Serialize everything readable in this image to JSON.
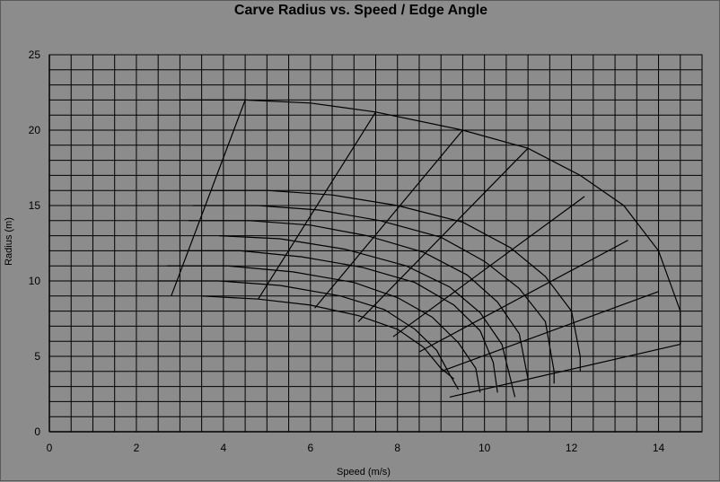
{
  "chart_data": {
    "type": "line",
    "title": "Carve Radius vs. Speed / Edge Angle",
    "xlabel": "Speed (m/s)",
    "ylabel": "Radius (m)",
    "xlim": [
      0,
      15
    ],
    "ylim": [
      0,
      25
    ],
    "x_ticks": [
      0,
      2,
      4,
      6,
      8,
      10,
      12,
      14
    ],
    "y_ticks": [
      0,
      5,
      10,
      15,
      20,
      25
    ],
    "grid": true,
    "legend": "none",
    "series": [
      {
        "points": [
          [
            3.0,
            22.0
          ],
          [
            4.5,
            22.0
          ],
          [
            6.0,
            21.8
          ],
          [
            7.5,
            21.2
          ],
          [
            9.5,
            20.0
          ],
          [
            11.0,
            18.8
          ],
          [
            12.2,
            17.0
          ],
          [
            13.2,
            15.0
          ],
          [
            14.0,
            12.0
          ],
          [
            14.5,
            8.0
          ],
          [
            14.5,
            5.8
          ]
        ]
      },
      {
        "points": [
          [
            3.5,
            16.0
          ],
          [
            5.0,
            16.0
          ],
          [
            6.5,
            15.7
          ],
          [
            8.0,
            15.0
          ],
          [
            9.5,
            13.9
          ],
          [
            10.6,
            12.2
          ],
          [
            11.4,
            10.3
          ],
          [
            12.0,
            8.0
          ],
          [
            12.2,
            5.0
          ],
          [
            12.2,
            4.0
          ]
        ]
      },
      {
        "points": [
          [
            3.3,
            15.0
          ],
          [
            4.8,
            15.0
          ],
          [
            6.2,
            14.7
          ],
          [
            7.6,
            14.0
          ],
          [
            9.0,
            12.9
          ],
          [
            10.0,
            11.3
          ],
          [
            10.8,
            9.5
          ],
          [
            11.4,
            7.3
          ],
          [
            11.6,
            4.0
          ],
          [
            11.6,
            3.2
          ]
        ]
      },
      {
        "points": [
          [
            3.2,
            14.0
          ],
          [
            4.6,
            14.0
          ],
          [
            6.0,
            13.7
          ],
          [
            7.3,
            13.0
          ],
          [
            8.6,
            11.9
          ],
          [
            9.6,
            10.4
          ],
          [
            10.3,
            8.6
          ],
          [
            10.8,
            6.5
          ],
          [
            11.0,
            3.5
          ],
          [
            11.0,
            2.8
          ]
        ]
      },
      {
        "points": [
          [
            3.9,
            13.0
          ],
          [
            5.3,
            12.8
          ],
          [
            6.8,
            12.1
          ],
          [
            8.2,
            11.0
          ],
          [
            9.2,
            9.6
          ],
          [
            9.9,
            7.9
          ],
          [
            10.4,
            5.8
          ],
          [
            10.7,
            2.3
          ]
        ]
      },
      {
        "points": [
          [
            3.0,
            12.0
          ],
          [
            4.4,
            12.0
          ],
          [
            5.8,
            11.6
          ],
          [
            7.2,
            10.9
          ],
          [
            8.4,
            9.9
          ],
          [
            9.3,
            8.4
          ],
          [
            9.9,
            6.7
          ],
          [
            10.2,
            4.6
          ],
          [
            10.3,
            2.6
          ]
        ]
      },
      {
        "points": [
          [
            2.7,
            11.0
          ],
          [
            4.1,
            11.0
          ],
          [
            5.6,
            10.6
          ],
          [
            7.0,
            9.9
          ],
          [
            8.0,
            8.9
          ],
          [
            8.8,
            7.6
          ],
          [
            9.4,
            5.9
          ],
          [
            9.8,
            4.2
          ],
          [
            9.9,
            2.6
          ]
        ]
      },
      {
        "points": [
          [
            2.5,
            10.0
          ],
          [
            3.9,
            10.0
          ],
          [
            5.3,
            9.7
          ],
          [
            6.7,
            9.0
          ],
          [
            7.7,
            8.1
          ],
          [
            8.4,
            6.8
          ],
          [
            8.9,
            5.4
          ],
          [
            9.2,
            3.8
          ],
          [
            9.4,
            2.8
          ]
        ]
      },
      {
        "points": [
          [
            3.5,
            9.0
          ],
          [
            4.8,
            8.8
          ],
          [
            6.0,
            8.4
          ],
          [
            7.1,
            7.7
          ],
          [
            8.0,
            6.8
          ],
          [
            8.6,
            5.6
          ],
          [
            9.0,
            4.2
          ],
          [
            9.3,
            3.5
          ]
        ]
      },
      {
        "points": [
          [
            2.8,
            9.0
          ],
          [
            4.5,
            22.0
          ]
        ]
      },
      {
        "points": [
          [
            4.8,
            8.8
          ],
          [
            7.5,
            21.2
          ]
        ]
      },
      {
        "points": [
          [
            6.1,
            8.2
          ],
          [
            9.5,
            20.0
          ]
        ]
      },
      {
        "points": [
          [
            7.1,
            7.3
          ],
          [
            11.0,
            18.8
          ]
        ]
      },
      {
        "points": [
          [
            7.9,
            6.3
          ],
          [
            12.3,
            15.6
          ]
        ]
      },
      {
        "points": [
          [
            8.5,
            5.3
          ],
          [
            13.3,
            12.7
          ]
        ]
      },
      {
        "points": [
          [
            9.0,
            4.0
          ],
          [
            14.0,
            9.3
          ]
        ]
      },
      {
        "points": [
          [
            9.2,
            2.3
          ],
          [
            14.5,
            5.8
          ]
        ]
      }
    ]
  }
}
